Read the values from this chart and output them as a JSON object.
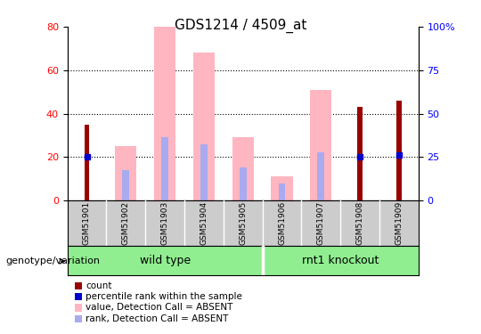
{
  "title": "GDS1214 / 4509_at",
  "samples": [
    "GSM51901",
    "GSM51902",
    "GSM51903",
    "GSM51904",
    "GSM51905",
    "GSM51906",
    "GSM51907",
    "GSM51908",
    "GSM51909"
  ],
  "count_values": [
    35,
    0,
    0,
    0,
    0,
    0,
    0,
    43,
    46
  ],
  "percentile_rank": [
    20,
    0,
    0,
    0,
    0,
    0,
    0,
    20,
    21
  ],
  "pink_bar_values": [
    0,
    25,
    80,
    68,
    29,
    11,
    51,
    0,
    0
  ],
  "blue_bar_values": [
    0,
    14,
    29,
    26,
    15,
    8,
    22,
    0,
    0
  ],
  "ylim_left": [
    0,
    80
  ],
  "ylim_right": [
    0,
    100
  ],
  "yticks_left": [
    0,
    20,
    40,
    60,
    80
  ],
  "yticks_right": [
    0,
    25,
    50,
    75,
    100
  ],
  "color_count": "#990000",
  "color_percentile": "#0000CC",
  "color_pink_bar": "#FFB6C1",
  "color_blue_bar": "#AAAAEE",
  "legend_labels": [
    "count",
    "percentile rank within the sample",
    "value, Detection Call = ABSENT",
    "rank, Detection Call = ABSENT"
  ],
  "legend_colors": [
    "#990000",
    "#0000CC",
    "#FFB6C1",
    "#AAAAEE"
  ],
  "wild_type_label": "wild type",
  "knockout_label": "rnt1 knockout",
  "group_prefix": "genotype/variation",
  "group_color": "#90EE90",
  "label_bg": "#cccccc",
  "background_color": "#ffffff"
}
